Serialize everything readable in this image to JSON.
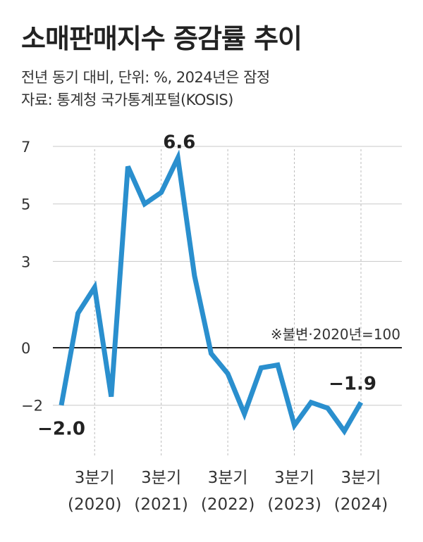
{
  "header": {
    "title": "소매판매지수 증감률 추이",
    "subtitle": "전년 동기 대비, 단위: %, 2024년은 잠정",
    "source": "자료: 통계청 국가통계포털(KOSIS)"
  },
  "chart_data": {
    "type": "line",
    "title": "소매판매지수 증감률 추이",
    "subtitle": "전년 동기 대비, 단위: %, 2024년은 잠정",
    "source": "자료: 통계청 국가통계포털(KOSIS)",
    "x": [
      "2020 1분기",
      "2020 2분기",
      "2020 3분기",
      "2020 4분기",
      "2021 1분기",
      "2021 2분기",
      "2021 3분기",
      "2021 4분기",
      "2022 1분기",
      "2022 2분기",
      "2022 3분기",
      "2022 4분기",
      "2023 1분기",
      "2023 2분기",
      "2023 3분기",
      "2023 4분기",
      "2024 1분기",
      "2024 2분기",
      "2024 3분기"
    ],
    "series": [
      {
        "values": [
          -2.0,
          1.2,
          2.1,
          -1.7,
          6.3,
          5.0,
          5.4,
          6.6,
          2.5,
          -0.2,
          -0.9,
          -2.3,
          -0.7,
          -0.6,
          -2.7,
          -1.9,
          -2.1,
          -2.9,
          -1.9
        ]
      }
    ],
    "ylim": [
      -3.5,
      7.5
    ],
    "yticks": [
      {
        "value": 7,
        "label": "7"
      },
      {
        "value": 5,
        "label": "5"
      },
      {
        "value": 3,
        "label": "3"
      },
      {
        "value": 0,
        "label": "0"
      },
      {
        "value": -2,
        "label": "−2"
      }
    ],
    "xticks": [
      {
        "index": 2,
        "line1": "3분기",
        "line2": "(2020)"
      },
      {
        "index": 6,
        "line1": "3분기",
        "line2": "(2021)"
      },
      {
        "index": 10,
        "line1": "3분기",
        "line2": "(2022)"
      },
      {
        "index": 14,
        "line1": "3분기",
        "line2": "(2023)"
      },
      {
        "index": 18,
        "line1": "3분기",
        "line2": "(2024)"
      }
    ],
    "data_labels": [
      {
        "index": 0,
        "label": "−2.0"
      },
      {
        "index": 7,
        "label": "6.6"
      },
      {
        "index": 18,
        "label": "−1.9"
      }
    ],
    "annotation": "※불변·2020년=100",
    "grid": true,
    "line_color": "#2a8fce"
  }
}
